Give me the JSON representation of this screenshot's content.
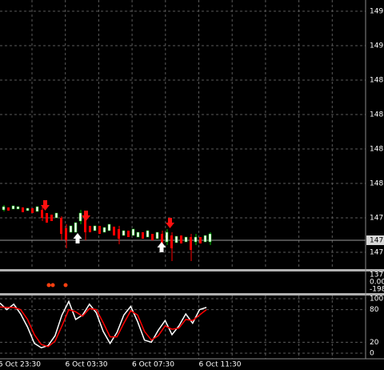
{
  "price_axis": {
    "labels": [
      "149",
      "149",
      "148",
      "148",
      "148",
      "148",
      "147",
      "147"
    ],
    "current": "147"
  },
  "indicator_axis": [
    "137",
    "0.00",
    "-198"
  ],
  "time_labels": [
    "5 Oct 23:30",
    "6 Oct 03:30",
    "6 Oct 07:30",
    "6 Oct 11:30"
  ],
  "chart_data": {
    "type": "line",
    "ylim": [
      0,
      100
    ],
    "yticks": [
      0,
      20,
      80,
      100
    ],
    "series": [
      {
        "color": "#ffffff",
        "values": [
          92,
          80,
          90,
          72,
          48,
          18,
          10,
          14,
          32,
          70,
          95,
          62,
          70,
          90,
          74,
          40,
          18,
          38,
          70,
          86,
          58,
          24,
          20,
          42,
          60,
          34,
          50,
          72,
          55,
          80,
          84
        ]
      },
      {
        "color": "#ff0000",
        "values": [
          85,
          84,
          84,
          80,
          62,
          34,
          16,
          12,
          22,
          50,
          80,
          76,
          68,
          82,
          80,
          56,
          30,
          30,
          55,
          78,
          70,
          40,
          24,
          32,
          50,
          44,
          46,
          62,
          60,
          70,
          80
        ]
      }
    ]
  }
}
